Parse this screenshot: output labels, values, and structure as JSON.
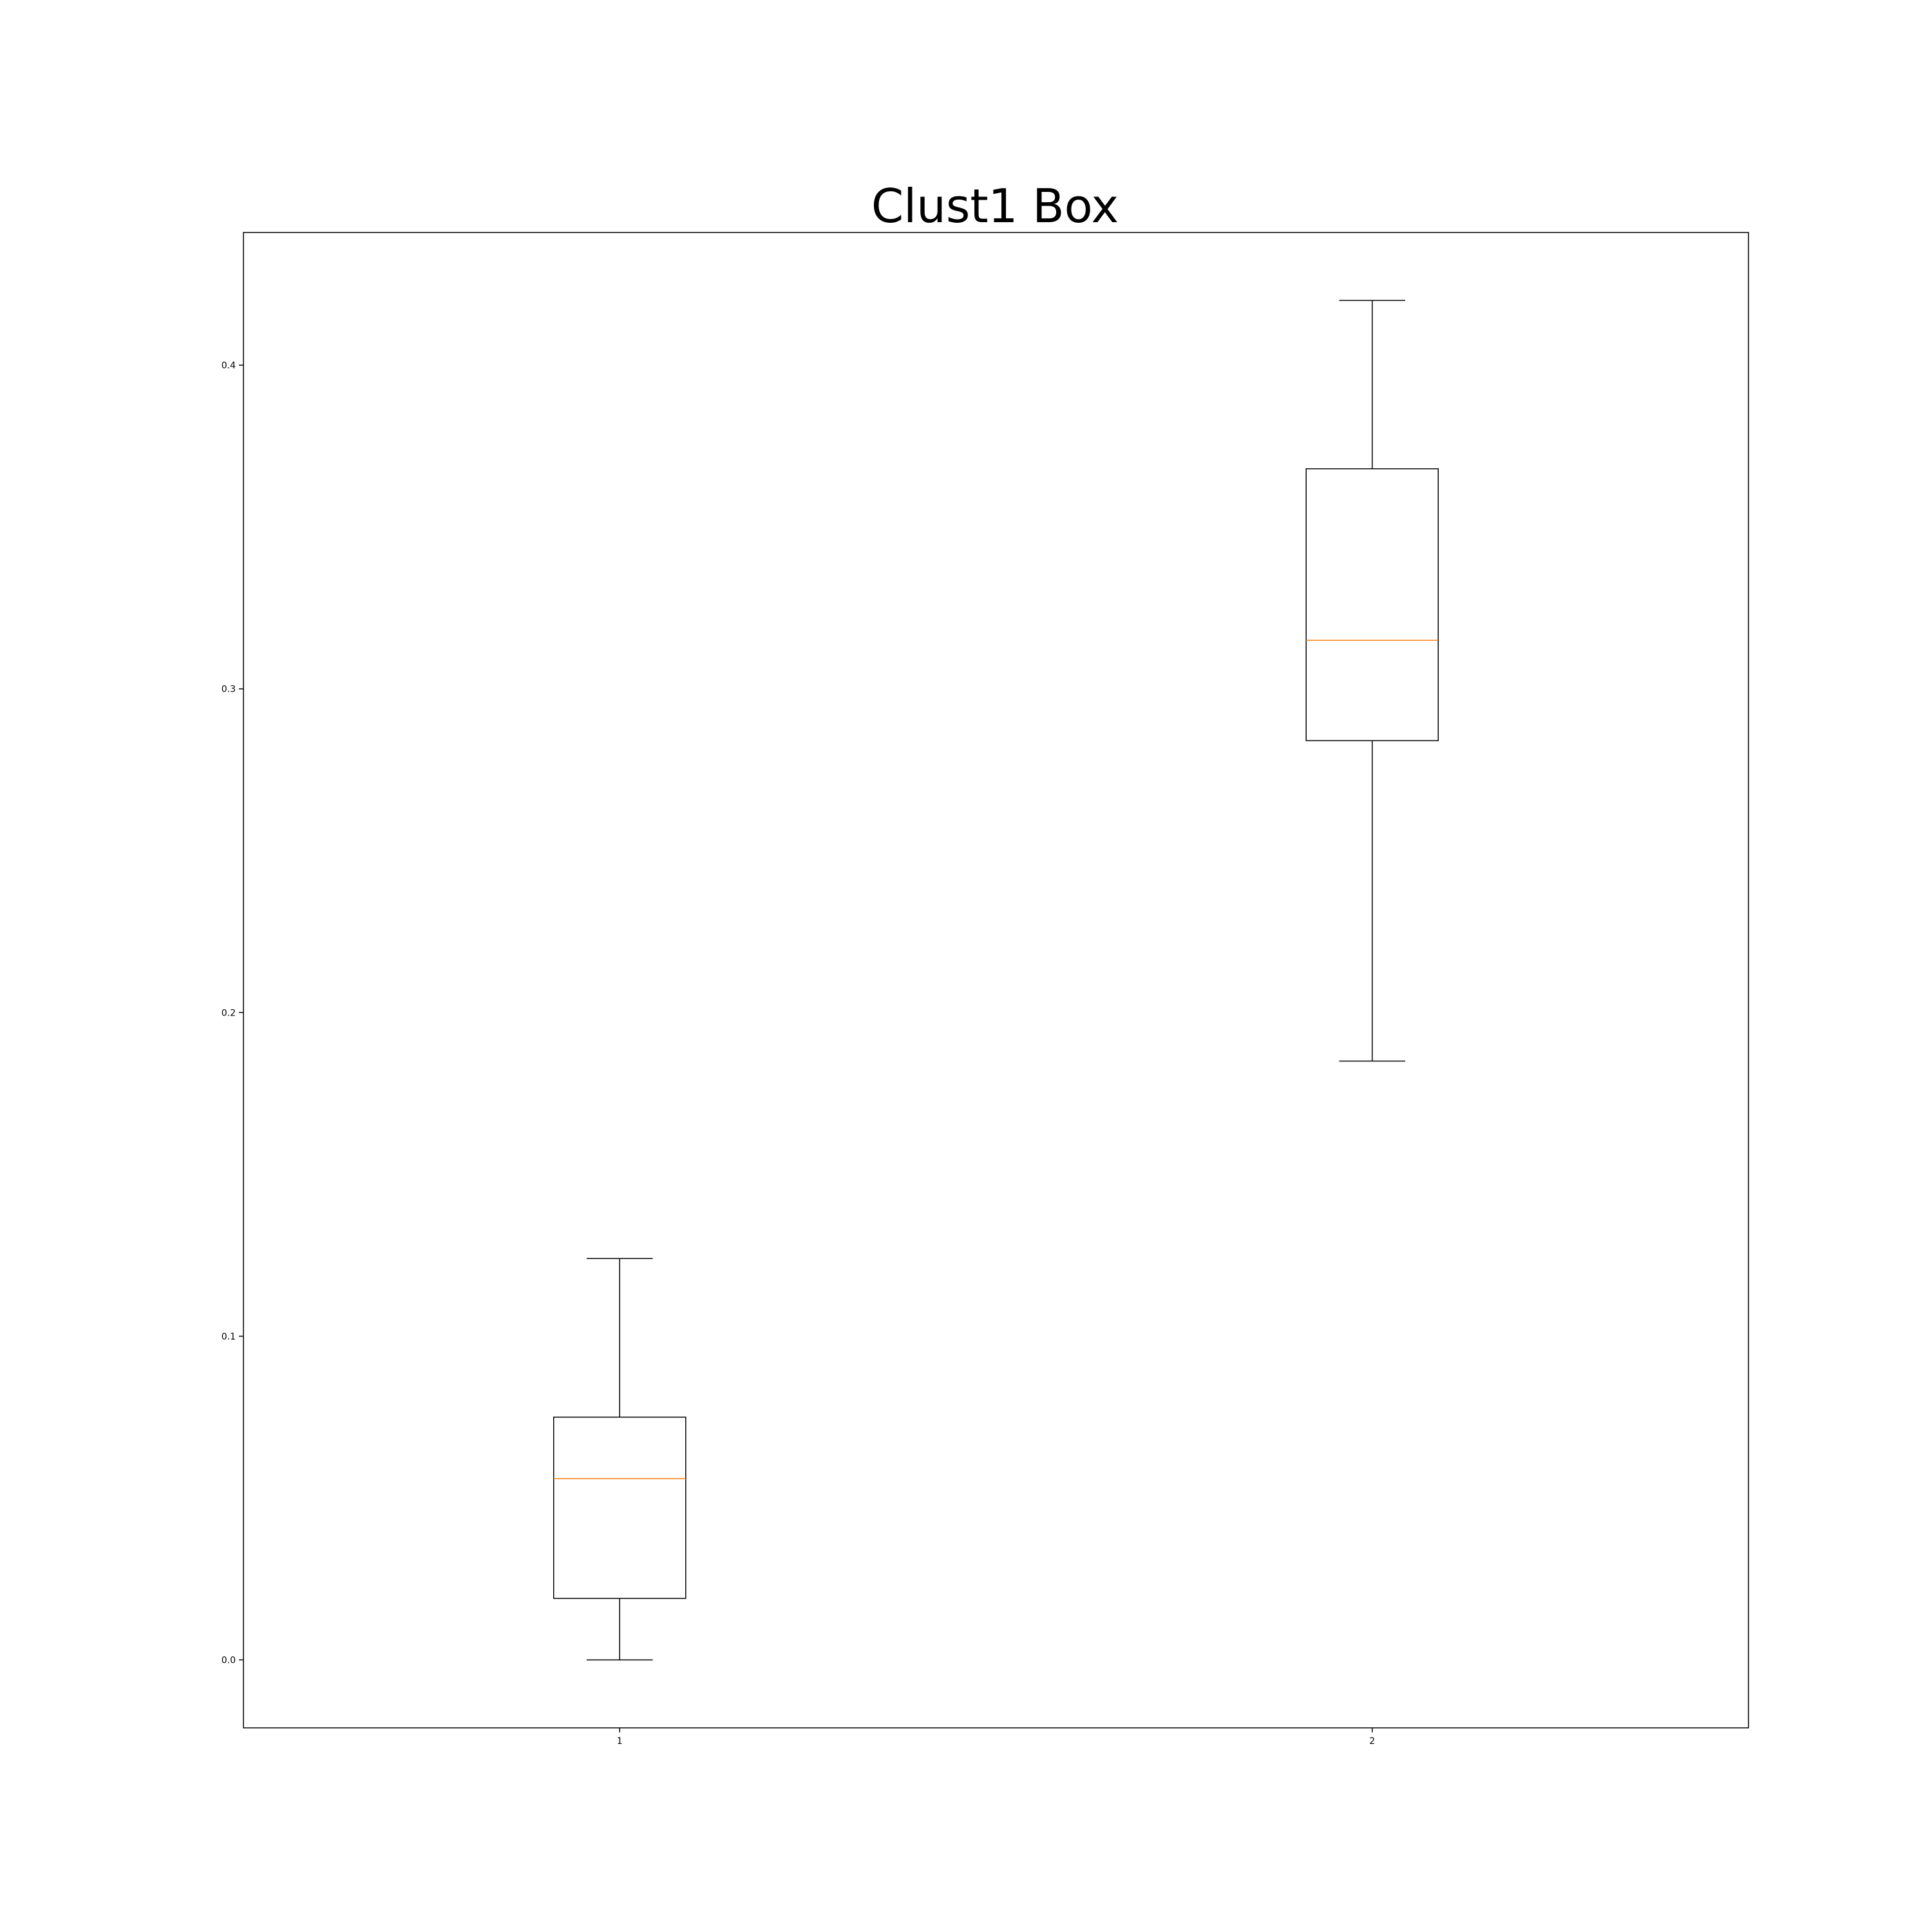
{
  "chart_data": {
    "type": "box",
    "title": "Clust1 Box",
    "xlabel": "",
    "ylabel": "",
    "categories": [
      "1",
      "2"
    ],
    "boxes": [
      {
        "category": "1",
        "whisker_low": 0.0,
        "q1": 0.019,
        "median": 0.056,
        "q3": 0.075,
        "whisker_high": 0.124
      },
      {
        "category": "2",
        "whisker_low": 0.185,
        "q1": 0.284,
        "median": 0.315,
        "q3": 0.368,
        "whisker_high": 0.42
      }
    ],
    "ylim": [
      -0.021,
      0.441
    ],
    "yticks": [
      0.0,
      0.1,
      0.2,
      0.3,
      0.4
    ],
    "ytick_labels": [
      "0.0",
      "0.1",
      "0.2",
      "0.3",
      "0.4"
    ],
    "grid": false,
    "colors": {
      "box": "#000000",
      "median": "#ff7f0e"
    }
  }
}
